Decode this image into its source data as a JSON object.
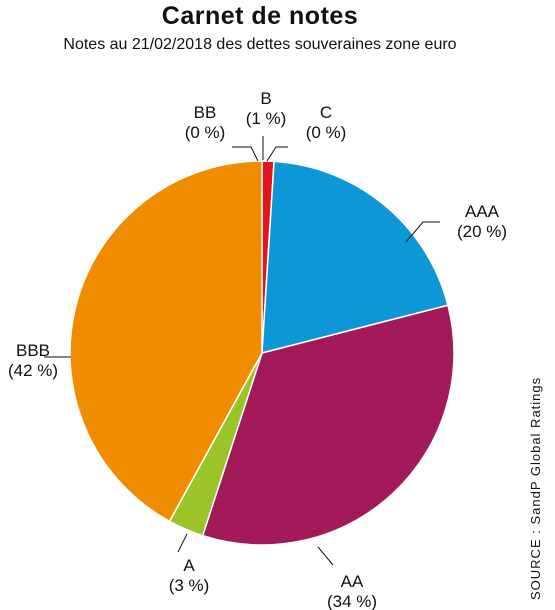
{
  "title": "Carnet de notes",
  "subtitle": "Notes au 21/02/2018 des dettes souveraines zone euro",
  "source": "SOURCE : SandP Global Ratings",
  "chart_data": {
    "type": "pie",
    "slices": [
      {
        "label": "B",
        "pct_text": "(1 %)",
        "value": 1,
        "color": "#e4141c"
      },
      {
        "label": "C",
        "pct_text": "(0 %)",
        "value": 0,
        "color": "#888888"
      },
      {
        "label": "AAA",
        "pct_text": "(20 %)",
        "value": 20,
        "color": "#0e97d6"
      },
      {
        "label": "AA",
        "pct_text": "(34 %)",
        "value": 34,
        "color": "#a31a5a"
      },
      {
        "label": "A",
        "pct_text": "(3 %)",
        "value": 3,
        "color": "#9bc428"
      },
      {
        "label": "BBB",
        "pct_text": "(42 %)",
        "value": 42,
        "color": "#f08c00"
      },
      {
        "label": "BB",
        "pct_text": "(0 %)",
        "value": 0,
        "color": "#888888"
      }
    ]
  }
}
